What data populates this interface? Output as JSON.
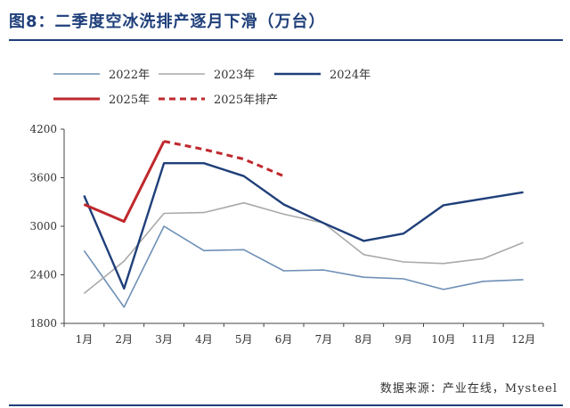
{
  "page": {
    "title": "图8：二季度空冰洗排产逐月下滑（万台）",
    "source": "数据来源：产业在线，Mysteel"
  },
  "chart_data": {
    "type": "line",
    "title": "图8：二季度空冰洗排产逐月下滑（万台）",
    "xlabel": "",
    "ylabel": "",
    "categories": [
      "1月",
      "2月",
      "3月",
      "4月",
      "5月",
      "6月",
      "7月",
      "8月",
      "9月",
      "10月",
      "11月",
      "12月"
    ],
    "ylim": [
      1800,
      4200
    ],
    "yticks": [
      1800,
      2400,
      3000,
      3600,
      4200
    ],
    "grid": false,
    "legend_position": "top",
    "series": [
      {
        "name": "2022年",
        "color": "#6d8fb6",
        "dashed": false,
        "width": 1.6,
        "values": [
          2700,
          2000,
          3000,
          2700,
          2710,
          2450,
          2460,
          2370,
          2350,
          2220,
          2320,
          2340
        ]
      },
      {
        "name": "2023年",
        "color": "#a9a9a9",
        "dashed": false,
        "width": 1.6,
        "values": [
          2170,
          2570,
          3160,
          3170,
          3290,
          3150,
          3040,
          2650,
          2560,
          2540,
          2600,
          2800
        ]
      },
      {
        "name": "2024年",
        "color": "#1f3f7a",
        "dashed": false,
        "width": 2.4,
        "values": [
          3380,
          2230,
          3780,
          3780,
          3620,
          3270,
          3040,
          2820,
          2910,
          3260,
          3340,
          3420
        ]
      },
      {
        "name": "2025年",
        "color": "#c0282d",
        "dashed": false,
        "width": 3,
        "values": [
          3270,
          3060,
          4050,
          null,
          null,
          null,
          null,
          null,
          null,
          null,
          null,
          null
        ]
      },
      {
        "name": "2025年排产",
        "color": "#c0282d",
        "dashed": true,
        "width": 3,
        "values": [
          null,
          null,
          4050,
          3950,
          3830,
          3620,
          null,
          null,
          null,
          null,
          null,
          null
        ]
      }
    ]
  }
}
